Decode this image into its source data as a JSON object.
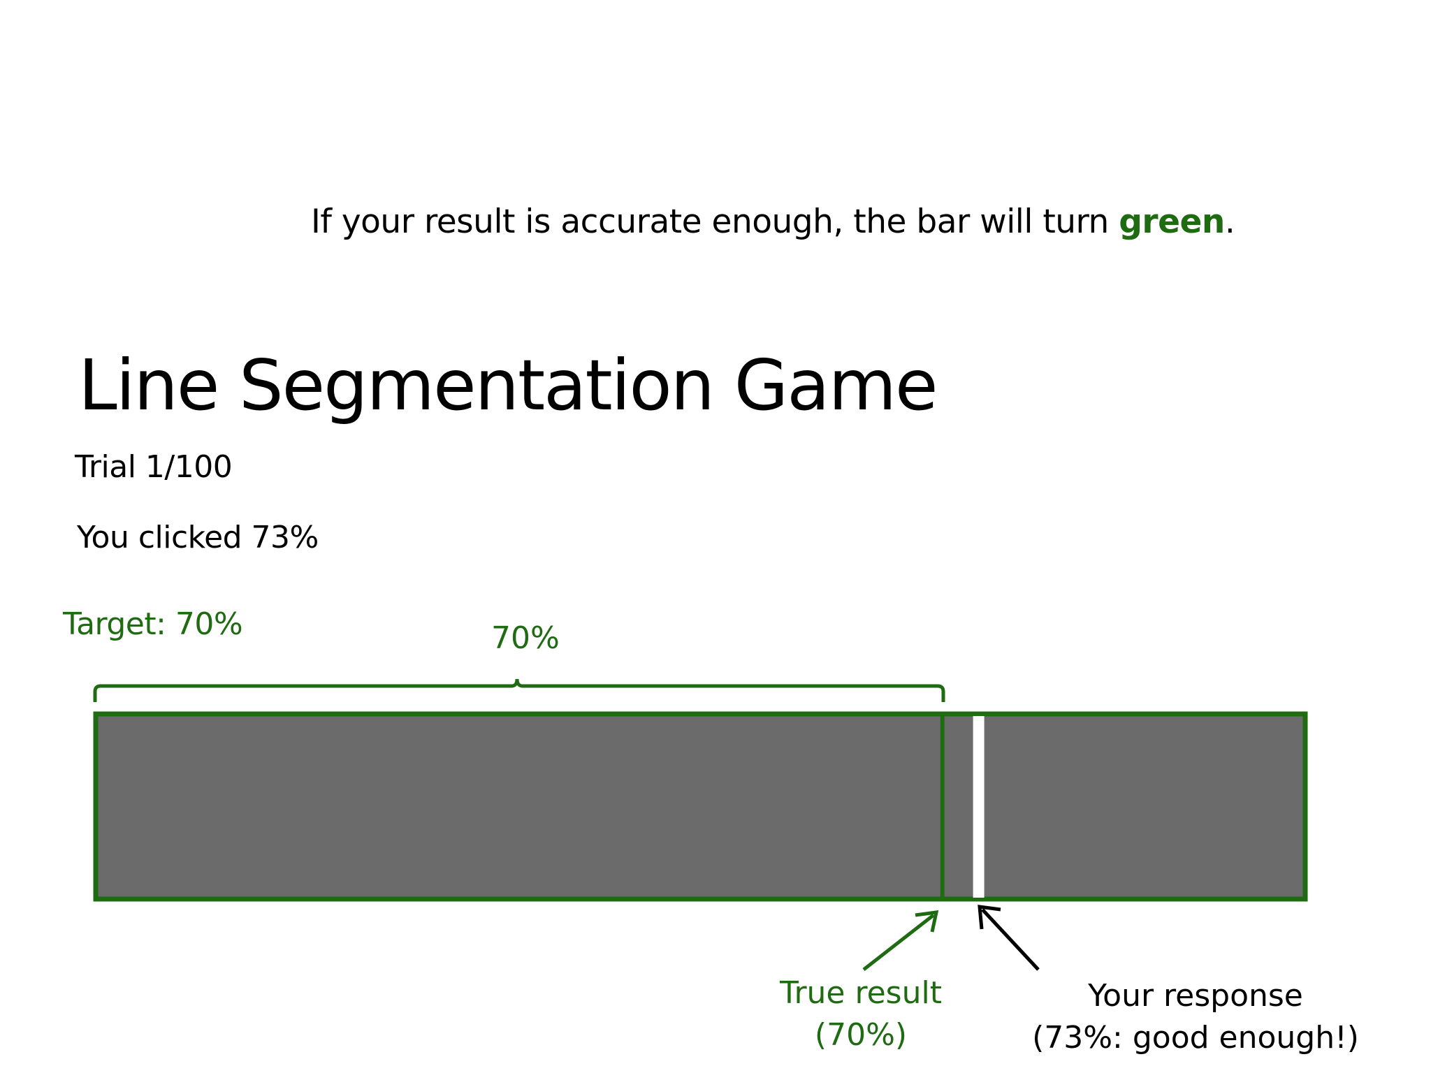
{
  "instruction": {
    "prefix": "If your result is accurate enough, the bar will turn ",
    "highlight": "green",
    "suffix": "."
  },
  "title": "Line Segmentation Game",
  "trial": "Trial 1/100",
  "clicked": "You clicked 73%",
  "target_label": "Target: 70%",
  "brace_label": "70%",
  "true_result": {
    "line1": "True result",
    "line2": "(70%)"
  },
  "response": {
    "line1": "Your response",
    "line2": "(73%: good enough!)"
  },
  "game": {
    "target_fraction": 0.7,
    "response_fraction": 0.73,
    "result": "good enough"
  },
  "colors": {
    "bar_fill": "#6b6b6b",
    "accent_green": "#1f6b12",
    "response_marker": "#ffffff",
    "arrow_black": "#000000"
  }
}
